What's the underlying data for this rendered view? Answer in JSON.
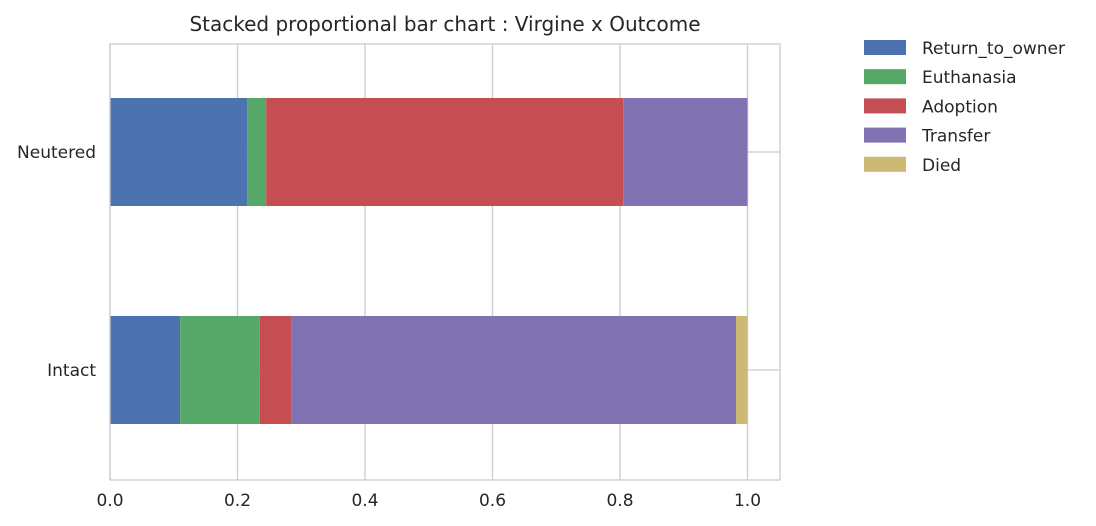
{
  "chart_data": {
    "type": "bar",
    "orientation": "horizontal",
    "stacked": true,
    "title": "Stacked proportional bar chart : Virgine x Outcome",
    "xlabel": "",
    "ylabel": "",
    "xlim": [
      0,
      1.05
    ],
    "xticks": [
      "0.0",
      "0.2",
      "0.4",
      "0.6",
      "0.8",
      "1.0"
    ],
    "categories": [
      "Neutered",
      "Intact"
    ],
    "series": [
      {
        "name": "Return_to_owner",
        "color": "#4c72b0",
        "values": [
          0.215,
          0.11
        ]
      },
      {
        "name": "Euthanasia",
        "color": "#55a868",
        "values": [
          0.03,
          0.125
        ]
      },
      {
        "name": "Adoption",
        "color": "#c44e52",
        "values": [
          0.56,
          0.05
        ]
      },
      {
        "name": "Transfer",
        "color": "#8172b2",
        "values": [
          0.195,
          0.697
        ]
      },
      {
        "name": "Died",
        "color": "#ccb974",
        "values": [
          0.0,
          0.018
        ]
      }
    ],
    "grid": true,
    "legend_position": "outside-top-right",
    "background": "#ffffff",
    "grid_color": "#cccccc"
  }
}
